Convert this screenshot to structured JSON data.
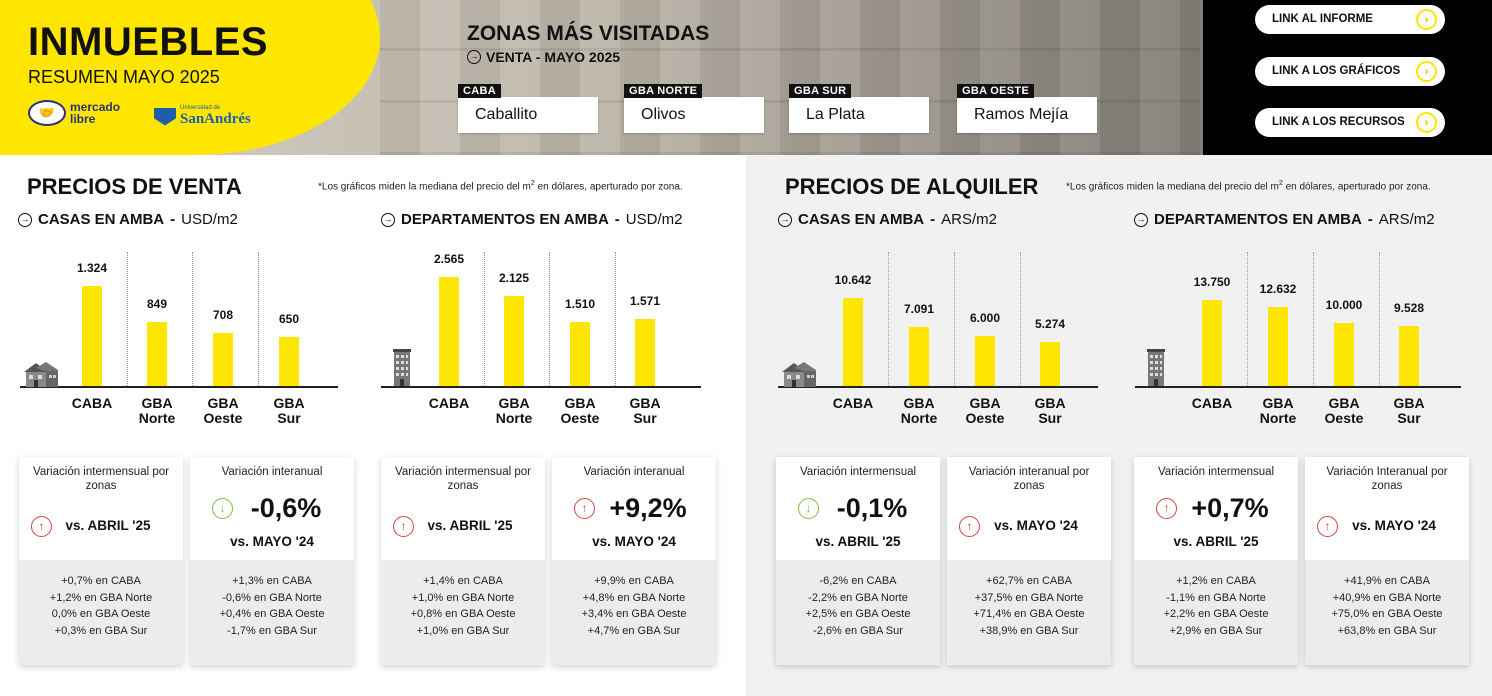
{
  "header": {
    "title": "INMUEBLES",
    "subtitle": "RESUMEN MAYO 2025",
    "logo_ml": "mercado libre",
    "logo_sa_small": "Universidad de",
    "logo_sa": "SanAndrés",
    "zonas_title": "ZONAS MÁS VISITADAS",
    "zonas_sub": "VENTA - MAYO 2025",
    "zones": [
      {
        "label": "CABA",
        "value": "Caballito"
      },
      {
        "label": "GBA NORTE",
        "value": "Olivos"
      },
      {
        "label": "GBA SUR",
        "value": "La Plata"
      },
      {
        "label": "GBA OESTE",
        "value": "Ramos Mejía"
      }
    ],
    "links": [
      "LINK AL INFORME",
      "LINK A LOS GRÁFICOS",
      "LINK A LOS RECURSOS"
    ]
  },
  "sections": {
    "venta": {
      "title": "PRECIOS DE VENTA",
      "note": "*Los gráficos miden la mediana del precio del m",
      "note_sup": "2",
      "note_end": " en dólares, aperturado por zona."
    },
    "alquiler": {
      "title": "PRECIOS DE ALQUILER",
      "note": "*Los gráficos miden la mediana del precio del m",
      "note_sup": "2",
      "note_end": " en dólares, aperturado por zona."
    }
  },
  "chart_data": [
    {
      "type": "bar",
      "title": "CASAS EN AMBA",
      "unit": "USD/m2",
      "categories": [
        "CABA",
        "GBA Norte",
        "GBA Oeste",
        "GBA Sur"
      ],
      "values": [
        1324,
        849,
        708,
        650
      ],
      "labels": [
        "1.324",
        "849",
        "708",
        "650"
      ]
    },
    {
      "type": "bar",
      "title": "DEPARTAMENTOS EN AMBA",
      "unit": "USD/m2",
      "categories": [
        "CABA",
        "GBA Norte",
        "GBA Oeste",
        "GBA Sur"
      ],
      "values": [
        2565,
        2125,
        1510,
        1571
      ],
      "labels": [
        "2.565",
        "2.125",
        "1.510",
        "1.571"
      ]
    },
    {
      "type": "bar",
      "title": "CASAS EN AMBA",
      "unit": "ARS/m2",
      "categories": [
        "CABA",
        "GBA Norte",
        "GBA Oeste",
        "GBA Sur"
      ],
      "values": [
        10642,
        7091,
        6000,
        5274
      ],
      "labels": [
        "10.642",
        "7.091",
        "6.000",
        "5.274"
      ]
    },
    {
      "type": "bar",
      "title": "DEPARTAMENTOS EN AMBA",
      "unit": "ARS/m2",
      "categories": [
        "CABA",
        "GBA Norte",
        "GBA Oeste",
        "GBA Sur"
      ],
      "values": [
        13750,
        12632,
        10000,
        9528
      ],
      "labels": [
        "13.750",
        "12.632",
        "10.000",
        "9.528"
      ]
    }
  ],
  "cards": [
    {
      "head": "Variación intermensual por zonas",
      "big": "",
      "vs": "vs. ABRIL '25",
      "dir": "up",
      "lines": [
        "+0,7% en CABA",
        "+1,2% en GBA Norte",
        "0,0% en GBA Oeste",
        "+0,3% en GBA Sur"
      ]
    },
    {
      "head": "Variación interanual",
      "big": "-0,6%",
      "vs": "vs. MAYO '24",
      "dir": "down",
      "lines": [
        "+1,3% en CABA",
        "-0,6% en GBA Norte",
        "+0,4% en GBA Oeste",
        "-1,7% en GBA Sur"
      ]
    },
    {
      "head": "Variación intermensual por zonas",
      "big": "",
      "vs": "vs. ABRIL '25",
      "dir": "up",
      "lines": [
        "+1,4% en CABA",
        "+1,0% en GBA Norte",
        "+0,8% en GBA Oeste",
        "+1,0% en GBA Sur"
      ]
    },
    {
      "head": "Variación interanual",
      "big": "+9,2%",
      "vs": "vs. MAYO '24",
      "dir": "up",
      "lines": [
        "+9,9% en CABA",
        "+4,8% en GBA Norte",
        "+3,4% en GBA Oeste",
        "+4,7% en GBA Sur"
      ]
    },
    {
      "head": "Variación intermensual",
      "big": "-0,1%",
      "vs": "vs. ABRIL '25",
      "dir": "down",
      "lines": [
        "-6,2% en CABA",
        "-2,2% en GBA Norte",
        "+2,5% en GBA Oeste",
        "-2,6% en GBA Sur"
      ]
    },
    {
      "head": "Variación interanual por zonas",
      "big": "",
      "vs": "vs. MAYO '24",
      "dir": "up",
      "lines": [
        "+62,7% en CABA",
        "+37,5% en GBA Norte",
        "+71,4% en GBA Oeste",
        "+38,9% en GBA Sur"
      ]
    },
    {
      "head": "Variación intermensual",
      "big": "+0,7%",
      "vs": "vs. ABRIL '25",
      "dir": "up",
      "lines": [
        "+1,2% en CABA",
        "-1,1% en GBA Norte",
        "+2,2% en GBA Oeste",
        "+2,9% en GBA Sur"
      ]
    },
    {
      "head": "Variación Interanual por zonas",
      "big": "",
      "vs": "vs. MAYO '24",
      "dir": "up",
      "lines": [
        "+41,9% en CABA",
        "+40,9% en GBA Norte",
        "+75,0% en GBA Oeste",
        "+63,8% en GBA Sur"
      ]
    }
  ],
  "colors": {
    "yellow": "#ffe600",
    "up": "#d2443d",
    "down": "#7dbd3a"
  },
  "icons": {
    "house": "house-icon",
    "building": "building-icon",
    "arrow": "circle-arrow-icon"
  }
}
